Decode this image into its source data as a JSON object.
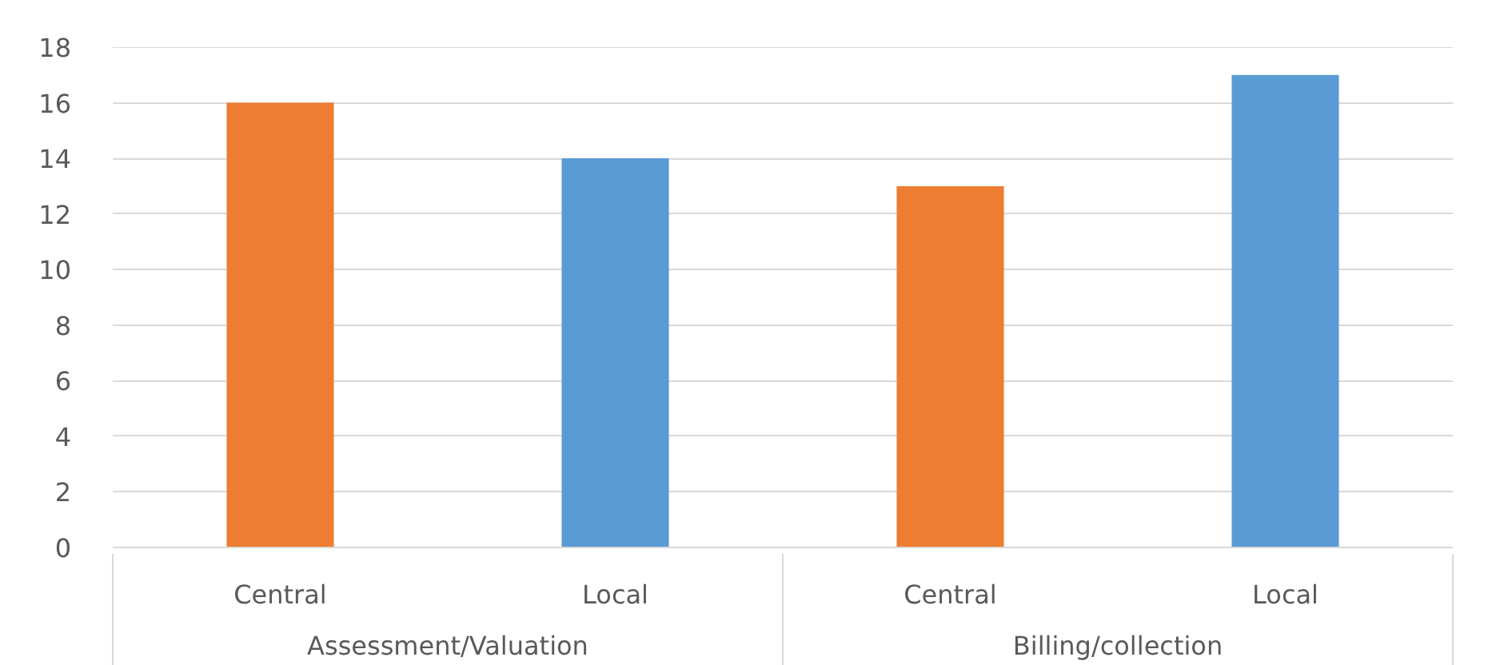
{
  "chart_data": {
    "type": "bar",
    "categories": [
      "Central",
      "Local",
      "Central",
      "Local"
    ],
    "values": [
      16,
      14,
      13,
      17
    ],
    "colors": [
      "#ed7d31",
      "#5b9bd5",
      "#ed7d31",
      "#5b9bd5"
    ],
    "ylim": [
      0,
      18
    ],
    "yticks": [
      0,
      2,
      4,
      6,
      8,
      10,
      12,
      14,
      16,
      18
    ],
    "grid": "y",
    "annotations": [
      "Assessment/Valuation",
      "Billing/collection"
    ]
  }
}
